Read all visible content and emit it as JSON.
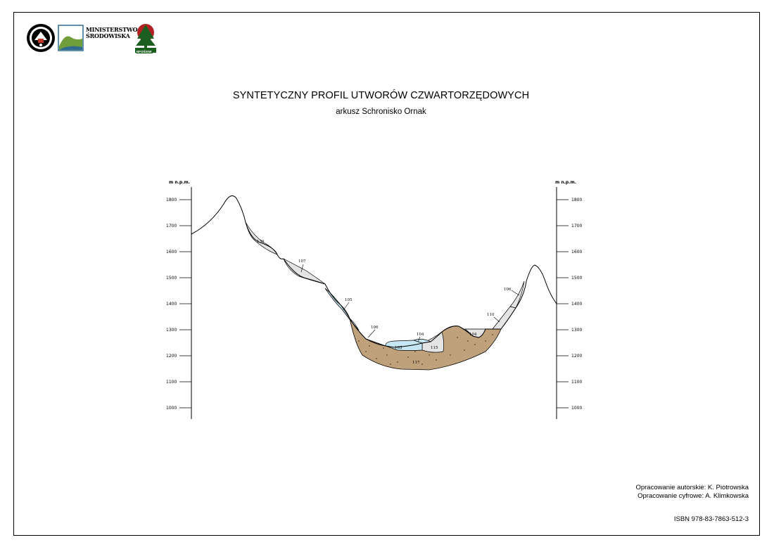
{
  "header": {
    "ministry_name": "MINISTERSTWO ŚRODOWISKA",
    "ministry_line1": "MINISTERSTWO",
    "ministry_line2": "ŚRODOWISKA",
    "fund_logo_text": "NFOŚiGW"
  },
  "title": "SYNTETYCZNY PROFIL UTWORÓW CZWARTORZĘDOWYCH",
  "subtitle": "arkusz Schronisko Ornak",
  "axis": {
    "unit_label_left": "m n.p.m.",
    "unit_label_right": "m n.p.m.",
    "ticks": [
      1800,
      1700,
      1600,
      1500,
      1400,
      1300,
      1200,
      1100,
      1000
    ],
    "tick_labels": [
      "1800",
      "1700",
      "1600",
      "1500",
      "1400",
      "1300",
      "1200",
      "1100",
      "1000"
    ]
  },
  "units": [
    {
      "id": "u1",
      "label": "130"
    },
    {
      "id": "u2",
      "label": "107"
    },
    {
      "id": "u3",
      "label": "105"
    },
    {
      "id": "u4",
      "label": "106"
    },
    {
      "id": "u5",
      "label": "104"
    },
    {
      "id": "u6",
      "label": "105"
    },
    {
      "id": "u7",
      "label": "115"
    },
    {
      "id": "u8",
      "label": "117"
    },
    {
      "id": "u9",
      "label": "104"
    },
    {
      "id": "u10",
      "label": "110"
    },
    {
      "id": "u11",
      "label": "106"
    }
  ],
  "colors": {
    "light_gray": "#e4e4e4",
    "light_blue": "#c5e6f2",
    "brown": "#bfa27c",
    "line": "#000000"
  },
  "credits": {
    "author": "Opracowanie autorskie: K. Piotrowska",
    "digital": "Opracowanie cyfrowe: A. Klimkowska"
  },
  "isbn": "ISBN 978-83-7863-512-3"
}
